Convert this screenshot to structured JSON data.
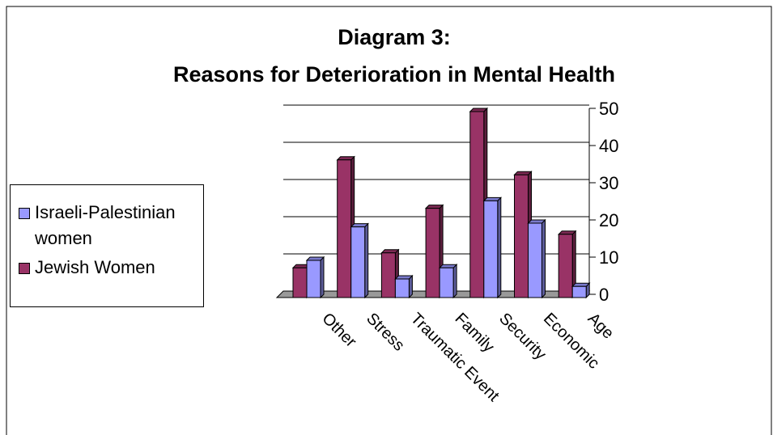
{
  "chart_data": {
    "type": "bar3d",
    "title": "Diagram 3:",
    "subtitle": "Reasons for Deterioration in Mental Health",
    "categories": [
      "Other",
      "Stress",
      "Traumatic Event",
      "Family",
      "Security",
      "Economic",
      "Age"
    ],
    "series": [
      {
        "name": "Jewish Women",
        "color": "#993366",
        "values": [
          8,
          37,
          12,
          24,
          50,
          33,
          17
        ]
      },
      {
        "name": "Israeli-Palestinian women",
        "color": "#9999ff",
        "values": [
          10,
          19,
          5,
          8,
          26,
          20,
          3
        ]
      }
    ],
    "ylim": [
      0,
      50
    ],
    "yticks": [
      0,
      10,
      20,
      30,
      40,
      50
    ],
    "grid": true
  }
}
